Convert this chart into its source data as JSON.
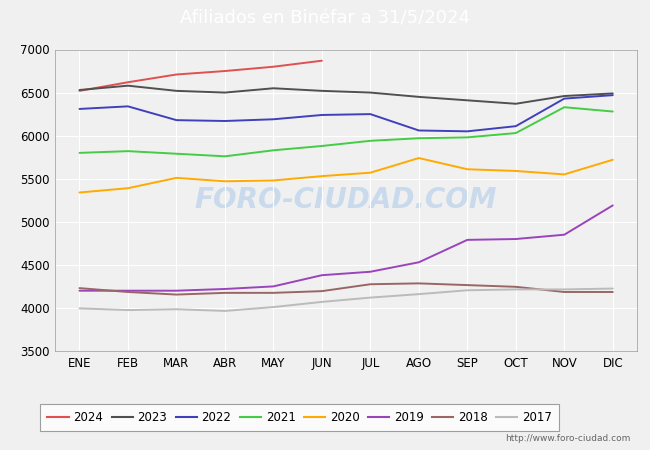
{
  "title": "Afiliados en Binéfar a 31/5/2024",
  "title_bg_color": "#4d8fcc",
  "title_text_color": "white",
  "ylim": [
    3500,
    7000
  ],
  "yticks": [
    3500,
    4000,
    4500,
    5000,
    5500,
    6000,
    6500,
    7000
  ],
  "xtick_labels": [
    "ENE",
    "FEB",
    "MAR",
    "ABR",
    "MAY",
    "JUN",
    "JUL",
    "AGO",
    "SEP",
    "OCT",
    "NOV",
    "DIC"
  ],
  "watermark": "FORO-CIUDAD.COM",
  "url": "http://www.foro-ciudad.com",
  "background_color": "#f0f0f0",
  "plot_bg_color": "#f0f0f0",
  "grid_color": "#ffffff",
  "series_data": {
    "2024": [
      6520,
      6620,
      6710,
      6750,
      6800,
      6870,
      null,
      null,
      null,
      null,
      null,
      null
    ],
    "2023": [
      6530,
      6580,
      6520,
      6500,
      6550,
      6520,
      6500,
      6450,
      6410,
      6370,
      6460,
      6490
    ],
    "2022": [
      6310,
      6340,
      6180,
      6170,
      6190,
      6240,
      6250,
      6060,
      6050,
      6110,
      6430,
      6470
    ],
    "2021": [
      5800,
      5820,
      5790,
      5760,
      5830,
      5880,
      5940,
      5970,
      5980,
      6030,
      6330,
      6280
    ],
    "2020": [
      5340,
      5390,
      5510,
      5470,
      5480,
      5530,
      5570,
      5740,
      5610,
      5590,
      5550,
      5720
    ],
    "2019": [
      4200,
      4200,
      4200,
      4220,
      4250,
      4380,
      4420,
      4530,
      4790,
      4800,
      4850,
      5190
    ],
    "2018": [
      4230,
      4185,
      4155,
      4175,
      4175,
      4195,
      4275,
      4285,
      4265,
      4245,
      4185,
      4185
    ],
    "2017": [
      3995,
      3975,
      3985,
      3965,
      4010,
      4070,
      4120,
      4160,
      4205,
      4215,
      4215,
      4225
    ]
  },
  "colors": {
    "2024": "#e05050",
    "2023": "#505050",
    "2022": "#4040bb",
    "2021": "#44cc44",
    "2020": "#ffaa00",
    "2019": "#9944bb",
    "2018": "#996666",
    "2017": "#bbbbbb"
  }
}
